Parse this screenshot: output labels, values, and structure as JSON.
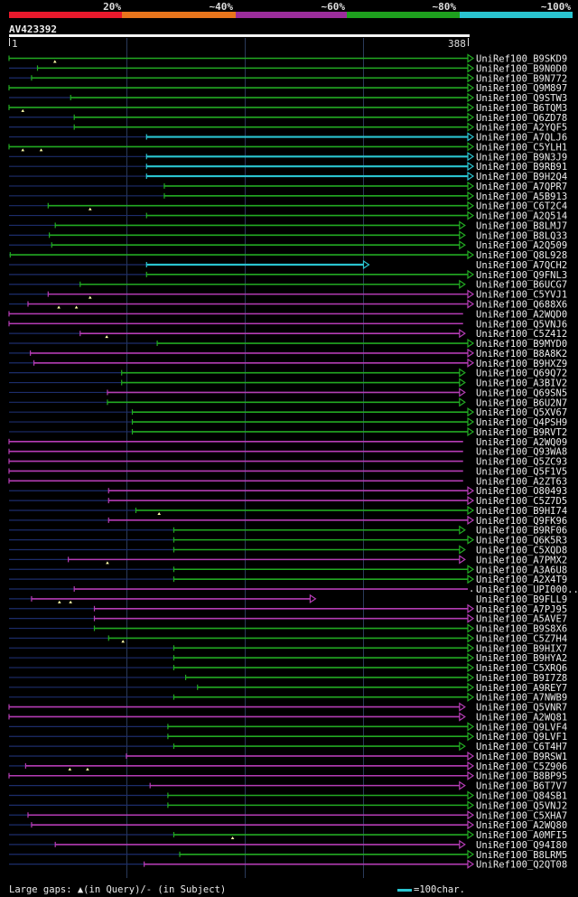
{
  "legend": {
    "labels": [
      "20%",
      "~40%",
      "~60%",
      "~80%",
      "~100%"
    ],
    "colors": [
      "#e8192c",
      "#e8751c",
      "#9b2d9b",
      "#1ea01e",
      "#2ac4d0"
    ]
  },
  "query": {
    "id": "AV423392",
    "start": "1",
    "end": "388"
  },
  "footer": {
    "gaps": "Large gaps: ▲(in Query)/- (in Subject)",
    "scale": "=100char."
  },
  "colors": {
    "green": "#22aa22",
    "magenta": "#b53cb5",
    "cyan": "#2ac4d0",
    "navy": "#1c2d6b",
    "marker": "#ffffaa"
  },
  "hits": [
    {
      "name": "UniRef100_B9SKD9",
      "color": "green",
      "s": 1,
      "e": 388,
      "gaps": [
        0.1
      ],
      "arrow": true
    },
    {
      "name": "UniRef100_B9N0D0",
      "color": "green",
      "s": 25,
      "e": 388,
      "arrow": true
    },
    {
      "name": "UniRef100_B9N772",
      "color": "green",
      "s": 20,
      "e": 388,
      "arrow": true
    },
    {
      "name": "UniRef100_Q9M897",
      "color": "green",
      "s": 1,
      "e": 388,
      "arrow": true
    },
    {
      "name": "UniRef100_Q9STW3",
      "color": "green",
      "s": 53,
      "e": 388,
      "arrow": true
    },
    {
      "name": "UniRef100_B6TQM3",
      "color": "green",
      "s": 1,
      "e": 388,
      "gaps": [
        0.03
      ],
      "arrow": true
    },
    {
      "name": "UniRef100_Q6ZD78",
      "color": "green",
      "s": 56,
      "e": 388,
      "arrow": true
    },
    {
      "name": "UniRef100_A2YQF5",
      "color": "green",
      "s": 56,
      "e": 388,
      "arrow": true
    },
    {
      "name": "UniRef100_A7QLJ6",
      "color": "cyan",
      "s": 117,
      "e": 388,
      "arrow": true
    },
    {
      "name": "UniRef100_C5YLH1",
      "color": "green",
      "s": 1,
      "e": 388,
      "gaps": [
        0.03,
        0.07
      ],
      "arrow": true
    },
    {
      "name": "UniRef100_B9N3J9",
      "color": "cyan",
      "s": 117,
      "e": 388,
      "arrow": true
    },
    {
      "name": "UniRef100_B9RB91",
      "color": "cyan",
      "s": 117,
      "e": 388,
      "arrow": true
    },
    {
      "name": "UniRef100_B9H2Q4",
      "color": "cyan",
      "s": 117,
      "e": 388,
      "arrow": true
    },
    {
      "name": "UniRef100_A7QPR7",
      "color": "green",
      "s": 132,
      "e": 388,
      "arrow": true
    },
    {
      "name": "UniRef100_A5B913",
      "color": "green",
      "s": 132,
      "e": 388,
      "arrow": true
    },
    {
      "name": "UniRef100_C6T2C4",
      "color": "green",
      "s": 34,
      "e": 388,
      "gaps": [
        0.1
      ],
      "arrow": true
    },
    {
      "name": "UniRef100_A2Q514",
      "color": "green",
      "s": 117,
      "e": 388,
      "arrow": true
    },
    {
      "name": "UniRef100_B8LMJ7",
      "color": "green",
      "s": 40,
      "e": 381,
      "arrow": true
    },
    {
      "name": "UniRef100_B8LQ33",
      "color": "green",
      "s": 35,
      "e": 381,
      "arrow": true
    },
    {
      "name": "UniRef100_A2Q509",
      "color": "green",
      "s": 37,
      "e": 381,
      "arrow": true
    },
    {
      "name": "UniRef100_Q8L928",
      "color": "green",
      "s": 2,
      "e": 388,
      "arrow": true
    },
    {
      "name": "UniRef100_A7QCH2",
      "color": "cyan",
      "s": 117,
      "e": 300,
      "arrow": true
    },
    {
      "name": "UniRef100_Q9FNL3",
      "color": "green",
      "s": 117,
      "e": 388,
      "arrow": true
    },
    {
      "name": "UniRef100_B6UCG7",
      "color": "green",
      "s": 61,
      "e": 381,
      "arrow": true
    },
    {
      "name": "UniRef100_C5YVJ1",
      "color": "magenta",
      "s": 34,
      "e": 388,
      "gaps": [
        0.1
      ],
      "arrow": true
    },
    {
      "name": "UniRef100_Q688X6",
      "color": "magenta",
      "s": 17,
      "e": 388,
      "gaps": [
        0.07,
        0.11
      ],
      "arrow": true
    },
    {
      "name": "UniRef100_A2WQD0",
      "color": "magenta",
      "s": 1,
      "e": 384
    },
    {
      "name": "UniRef100_Q5VNJ6",
      "color": "magenta",
      "s": 1,
      "e": 384
    },
    {
      "name": "UniRef100_C5Z412",
      "color": "magenta",
      "s": 61,
      "e": 381,
      "gaps": [
        0.07
      ],
      "arrow": true
    },
    {
      "name": "UniRef100_B9MYD0",
      "color": "green",
      "s": 126,
      "e": 388,
      "arrow": true
    },
    {
      "name": "UniRef100_B8A8K2",
      "color": "magenta",
      "s": 19,
      "e": 388,
      "arrow": true
    },
    {
      "name": "UniRef100_B9HXZ9",
      "color": "magenta",
      "s": 22,
      "e": 388,
      "arrow": true
    },
    {
      "name": "UniRef100_Q69Q72",
      "color": "green",
      "s": 96,
      "e": 381,
      "arrow": true
    },
    {
      "name": "UniRef100_A3BIV2",
      "color": "green",
      "s": 96,
      "e": 381,
      "arrow": true
    },
    {
      "name": "UniRef100_Q69SN5",
      "color": "magenta",
      "s": 84,
      "e": 381,
      "arrow": true
    },
    {
      "name": "UniRef100_B6U2N7",
      "color": "green",
      "s": 84,
      "e": 381,
      "arrow": true
    },
    {
      "name": "UniRef100_Q5XV67",
      "color": "green",
      "s": 105,
      "e": 388,
      "arrow": true
    },
    {
      "name": "UniRef100_Q4PSH9",
      "color": "green",
      "s": 105,
      "e": 388,
      "arrow": true
    },
    {
      "name": "UniRef100_B9RVT2",
      "color": "green",
      "s": 105,
      "e": 388,
      "arrow": true
    },
    {
      "name": "UniRef100_A2WQ09",
      "color": "magenta",
      "s": 1,
      "e": 384
    },
    {
      "name": "UniRef100_Q93WA8",
      "color": "magenta",
      "s": 1,
      "e": 384
    },
    {
      "name": "UniRef100_Q5ZC93",
      "color": "magenta",
      "s": 1,
      "e": 384
    },
    {
      "name": "UniRef100_Q5F1V5",
      "color": "magenta",
      "s": 1,
      "e": 384
    },
    {
      "name": "UniRef100_A2ZT63",
      "color": "magenta",
      "s": 1,
      "e": 384
    },
    {
      "name": "UniRef100_O80493",
      "color": "magenta",
      "s": 85,
      "e": 388,
      "arrow": true
    },
    {
      "name": "UniRef100_C5Z7D5",
      "color": "magenta",
      "s": 85,
      "e": 388,
      "arrow": true
    },
    {
      "name": "UniRef100_B9HI74",
      "color": "green",
      "s": 108,
      "e": 388,
      "gaps": [
        0.07
      ],
      "arrow": true
    },
    {
      "name": "UniRef100_Q9FK96",
      "color": "magenta",
      "s": 85,
      "e": 388,
      "arrow": true
    },
    {
      "name": "UniRef100_B9RF06",
      "color": "green",
      "s": 140,
      "e": 381,
      "arrow": true
    },
    {
      "name": "UniRef100_Q6K5R3",
      "color": "green",
      "s": 140,
      "e": 388,
      "arrow": true
    },
    {
      "name": "UniRef100_C5XQD8",
      "color": "green",
      "s": 140,
      "e": 381,
      "arrow": true
    },
    {
      "name": "UniRef100_A7PMX2",
      "color": "magenta",
      "s": 51,
      "e": 381,
      "gaps": [
        0.1
      ],
      "arrow": true
    },
    {
      "name": "UniRef100_A3A6U8",
      "color": "green",
      "s": 140,
      "e": 388,
      "arrow": true
    },
    {
      "name": "UniRef100_A2X4T9",
      "color": "green",
      "s": 140,
      "e": 388,
      "arrow": true
    },
    {
      "name": "UniRef100_UPI000...",
      "color": "magenta",
      "s": 56,
      "e": 388,
      "dots": true
    },
    {
      "name": "UniRef100_B9FLL9",
      "color": "magenta",
      "s": 20,
      "e": 255,
      "gaps": [
        0.1,
        0.14
      ],
      "arrow": true
    },
    {
      "name": "UniRef100_A7PJ95",
      "color": "magenta",
      "s": 73,
      "e": 388,
      "arrow": true
    },
    {
      "name": "UniRef100_A5AVE7",
      "color": "magenta",
      "s": 73,
      "e": 388,
      "arrow": true
    },
    {
      "name": "UniRef100_B9S8X6",
      "color": "green",
      "s": 73,
      "e": 388,
      "arrow": true
    },
    {
      "name": "UniRef100_C5Z7H4",
      "color": "green",
      "s": 85,
      "e": 388,
      "gaps": [
        0.04
      ],
      "arrow": true
    },
    {
      "name": "UniRef100_B9HIX7",
      "color": "green",
      "s": 140,
      "e": 388,
      "arrow": true
    },
    {
      "name": "UniRef100_B9HYA2",
      "color": "green",
      "s": 140,
      "e": 388,
      "arrow": true
    },
    {
      "name": "UniRef100_C5XRQ6",
      "color": "green",
      "s": 140,
      "e": 388,
      "arrow": true
    },
    {
      "name": "UniRef100_B9I7Z8",
      "color": "green",
      "s": 150,
      "e": 388,
      "arrow": true
    },
    {
      "name": "UniRef100_A9REY7",
      "color": "green",
      "s": 160,
      "e": 388,
      "arrow": true
    },
    {
      "name": "UniRef100_A7NWB9",
      "color": "green",
      "s": 140,
      "e": 388,
      "arrow": true
    },
    {
      "name": "UniRef100_Q5VNR7",
      "color": "magenta",
      "s": 1,
      "e": 381,
      "arrow": true
    },
    {
      "name": "UniRef100_A2WQ81",
      "color": "magenta",
      "s": 1,
      "e": 381,
      "arrow": true
    },
    {
      "name": "UniRef100_Q9LVF4",
      "color": "green",
      "s": 135,
      "e": 388,
      "arrow": true
    },
    {
      "name": "UniRef100_Q9LVF1",
      "color": "green",
      "s": 135,
      "e": 388,
      "arrow": true
    },
    {
      "name": "UniRef100_C6T4H7",
      "color": "green",
      "s": 140,
      "e": 381,
      "arrow": true
    },
    {
      "name": "UniRef100_B9RSW1",
      "color": "magenta",
      "s": 100,
      "e": 388,
      "arrow": true
    },
    {
      "name": "UniRef100_C5Z906",
      "color": "magenta",
      "s": 15,
      "e": 388,
      "gaps": [
        0.1,
        0.14
      ],
      "arrow": true
    },
    {
      "name": "UniRef100_B8BP95",
      "color": "magenta",
      "s": 1,
      "e": 388,
      "arrow": true
    },
    {
      "name": "UniRef100_B6T7V7",
      "color": "magenta",
      "s": 120,
      "e": 381,
      "arrow": true
    },
    {
      "name": "UniRef100_Q84SB1",
      "color": "green",
      "s": 135,
      "e": 388,
      "arrow": true
    },
    {
      "name": "UniRef100_Q5VNJ2",
      "color": "green",
      "s": 135,
      "e": 388,
      "arrow": true
    },
    {
      "name": "UniRef100_C5XHA7",
      "color": "magenta",
      "s": 17,
      "e": 388,
      "arrow": true
    },
    {
      "name": "UniRef100_A2WQ80",
      "color": "magenta",
      "s": 20,
      "e": 388,
      "arrow": true
    },
    {
      "name": "UniRef100_A0MFI5",
      "color": "green",
      "s": 140,
      "e": 388,
      "gaps": [
        0.2
      ],
      "arrow": true
    },
    {
      "name": "UniRef100_Q94I80",
      "color": "magenta",
      "s": 40,
      "e": 381,
      "arrow": true
    },
    {
      "name": "UniRef100_B8LRM5",
      "color": "green",
      "s": 145,
      "e": 388,
      "arrow": true
    },
    {
      "name": "UniRef100_Q2QT08",
      "color": "magenta",
      "s": 115,
      "e": 388,
      "arrow": true
    }
  ]
}
